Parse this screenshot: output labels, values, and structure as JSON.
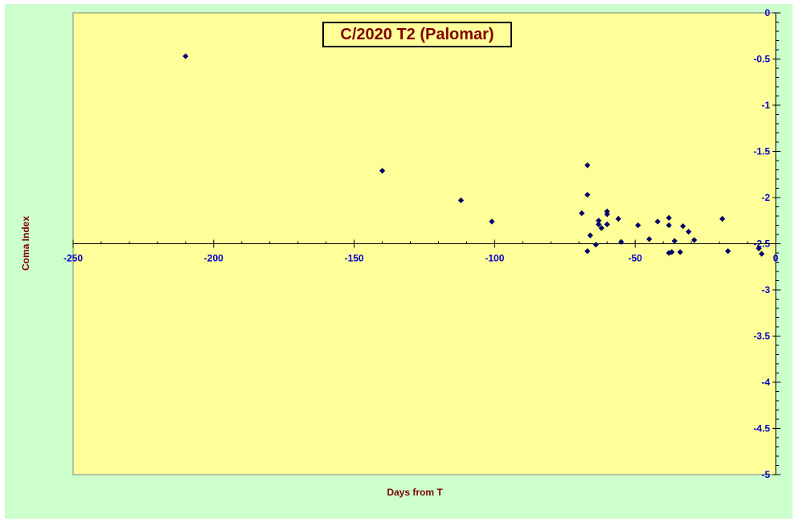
{
  "chart_data": {
    "type": "scatter",
    "title": "C/2020 T2 (Palomar)",
    "xlabel": "Days from T",
    "ylabel": "Coma Index",
    "xlim": [
      -250,
      0
    ],
    "ylim": [
      -5,
      0
    ],
    "x_ticks": [
      -250,
      -200,
      -150,
      -100,
      -50,
      0
    ],
    "y_ticks": [
      0,
      -0.5,
      -1,
      -1.5,
      -2,
      -2.5,
      -3,
      -3.5,
      -4,
      -4.5,
      -5
    ],
    "x_axis_crosses_at_y": -2.5,
    "grid": false,
    "legend": "none",
    "colors": {
      "plot_bg": "#ffff99",
      "outer_bg": "#ccffcc",
      "marker": "#000080",
      "tick_text": "#0000cc",
      "title_text": "#800000"
    },
    "series": [
      {
        "marker": "diamond",
        "points": [
          {
            "x": -210,
            "y": -0.47
          },
          {
            "x": -140,
            "y": -1.71
          },
          {
            "x": -112,
            "y": -2.03
          },
          {
            "x": -101,
            "y": -2.26
          },
          {
            "x": -69,
            "y": -2.17
          },
          {
            "x": -67,
            "y": -1.65
          },
          {
            "x": -67,
            "y": -1.97
          },
          {
            "x": -67,
            "y": -2.58
          },
          {
            "x": -66,
            "y": -2.41
          },
          {
            "x": -64,
            "y": -2.51
          },
          {
            "x": -63,
            "y": -2.25
          },
          {
            "x": -63,
            "y": -2.29
          },
          {
            "x": -62,
            "y": -2.33
          },
          {
            "x": -60,
            "y": -2.15
          },
          {
            "x": -60,
            "y": -2.18
          },
          {
            "x": -60,
            "y": -2.29
          },
          {
            "x": -56,
            "y": -2.23
          },
          {
            "x": -55,
            "y": -2.48
          },
          {
            "x": -49,
            "y": -2.3
          },
          {
            "x": -45,
            "y": -2.45
          },
          {
            "x": -42,
            "y": -2.26
          },
          {
            "x": -38,
            "y": -2.22
          },
          {
            "x": -38,
            "y": -2.3
          },
          {
            "x": -38,
            "y": -2.6
          },
          {
            "x": -37,
            "y": -2.59
          },
          {
            "x": -36,
            "y": -2.47
          },
          {
            "x": -34,
            "y": -2.59
          },
          {
            "x": -33,
            "y": -2.31
          },
          {
            "x": -31,
            "y": -2.37
          },
          {
            "x": -29,
            "y": -2.46
          },
          {
            "x": -19,
            "y": -2.23
          },
          {
            "x": -17,
            "y": -2.58
          },
          {
            "x": -6,
            "y": -2.55
          },
          {
            "x": -5,
            "y": -2.61
          }
        ]
      }
    ]
  }
}
